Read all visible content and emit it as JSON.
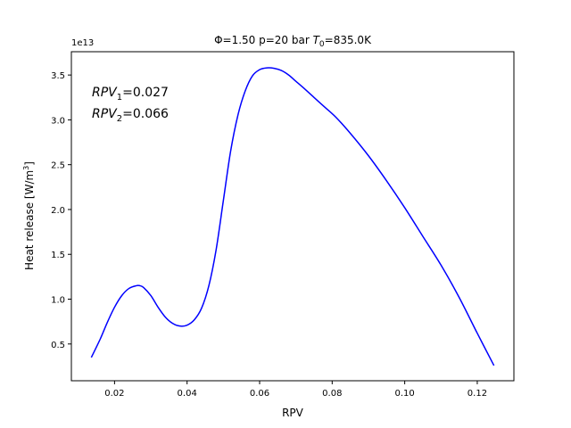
{
  "chart_data": {
    "type": "line",
    "title": {
      "phi_symbol": "Φ",
      "phi_value": "=1.50 p=20 bar ",
      "t_symbol": "T",
      "t_sub": "0",
      "t_value": "=835.0K"
    },
    "xlabel": "RPV",
    "ylabel": {
      "main": "Heat release [W/m",
      "sup": "3",
      "close": "]"
    },
    "offset_label": "1e13",
    "xlim": [
      0.0081,
      0.1301
    ],
    "ylim": [
      0.09,
      3.76
    ],
    "x_ticks": [
      {
        "value": 0.02,
        "label": "0.02"
      },
      {
        "value": 0.04,
        "label": "0.04"
      },
      {
        "value": 0.06,
        "label": "0.06"
      },
      {
        "value": 0.08,
        "label": "0.08"
      },
      {
        "value": 0.1,
        "label": "0.10"
      },
      {
        "value": 0.12,
        "label": "0.12"
      }
    ],
    "y_ticks": [
      {
        "value": 0.5,
        "label": "0.5"
      },
      {
        "value": 1.0,
        "label": "1.0"
      },
      {
        "value": 1.5,
        "label": "1.5"
      },
      {
        "value": 2.0,
        "label": "2.0"
      },
      {
        "value": 2.5,
        "label": "2.5"
      },
      {
        "value": 3.0,
        "label": "3.0"
      },
      {
        "value": 3.5,
        "label": "3.5"
      }
    ],
    "grid": false,
    "annotations": [
      {
        "name": "RPV",
        "sub": "1",
        "value": "=0.027"
      },
      {
        "name": "RPV",
        "sub": "2",
        "value": "=0.066"
      }
    ],
    "series": [
      {
        "color": "#0000ff",
        "x": [
          0.0136,
          0.016,
          0.018,
          0.02,
          0.022,
          0.024,
          0.026,
          0.027,
          0.028,
          0.03,
          0.032,
          0.034,
          0.036,
          0.038,
          0.04,
          0.042,
          0.044,
          0.046,
          0.048,
          0.05,
          0.052,
          0.054,
          0.056,
          0.058,
          0.06,
          0.062,
          0.064,
          0.066,
          0.068,
          0.07,
          0.072,
          0.075,
          0.078,
          0.081,
          0.085,
          0.09,
          0.095,
          0.1,
          0.105,
          0.11,
          0.115,
          0.12,
          0.1246
        ],
        "y": [
          0.35,
          0.55,
          0.74,
          0.91,
          1.04,
          1.12,
          1.15,
          1.15,
          1.13,
          1.04,
          0.91,
          0.8,
          0.73,
          0.7,
          0.71,
          0.77,
          0.9,
          1.15,
          1.55,
          2.1,
          2.65,
          3.05,
          3.32,
          3.49,
          3.56,
          3.58,
          3.575,
          3.55,
          3.5,
          3.43,
          3.36,
          3.25,
          3.14,
          3.03,
          2.85,
          2.6,
          2.32,
          2.02,
          1.7,
          1.38,
          1.02,
          0.62,
          0.26
        ]
      }
    ]
  }
}
